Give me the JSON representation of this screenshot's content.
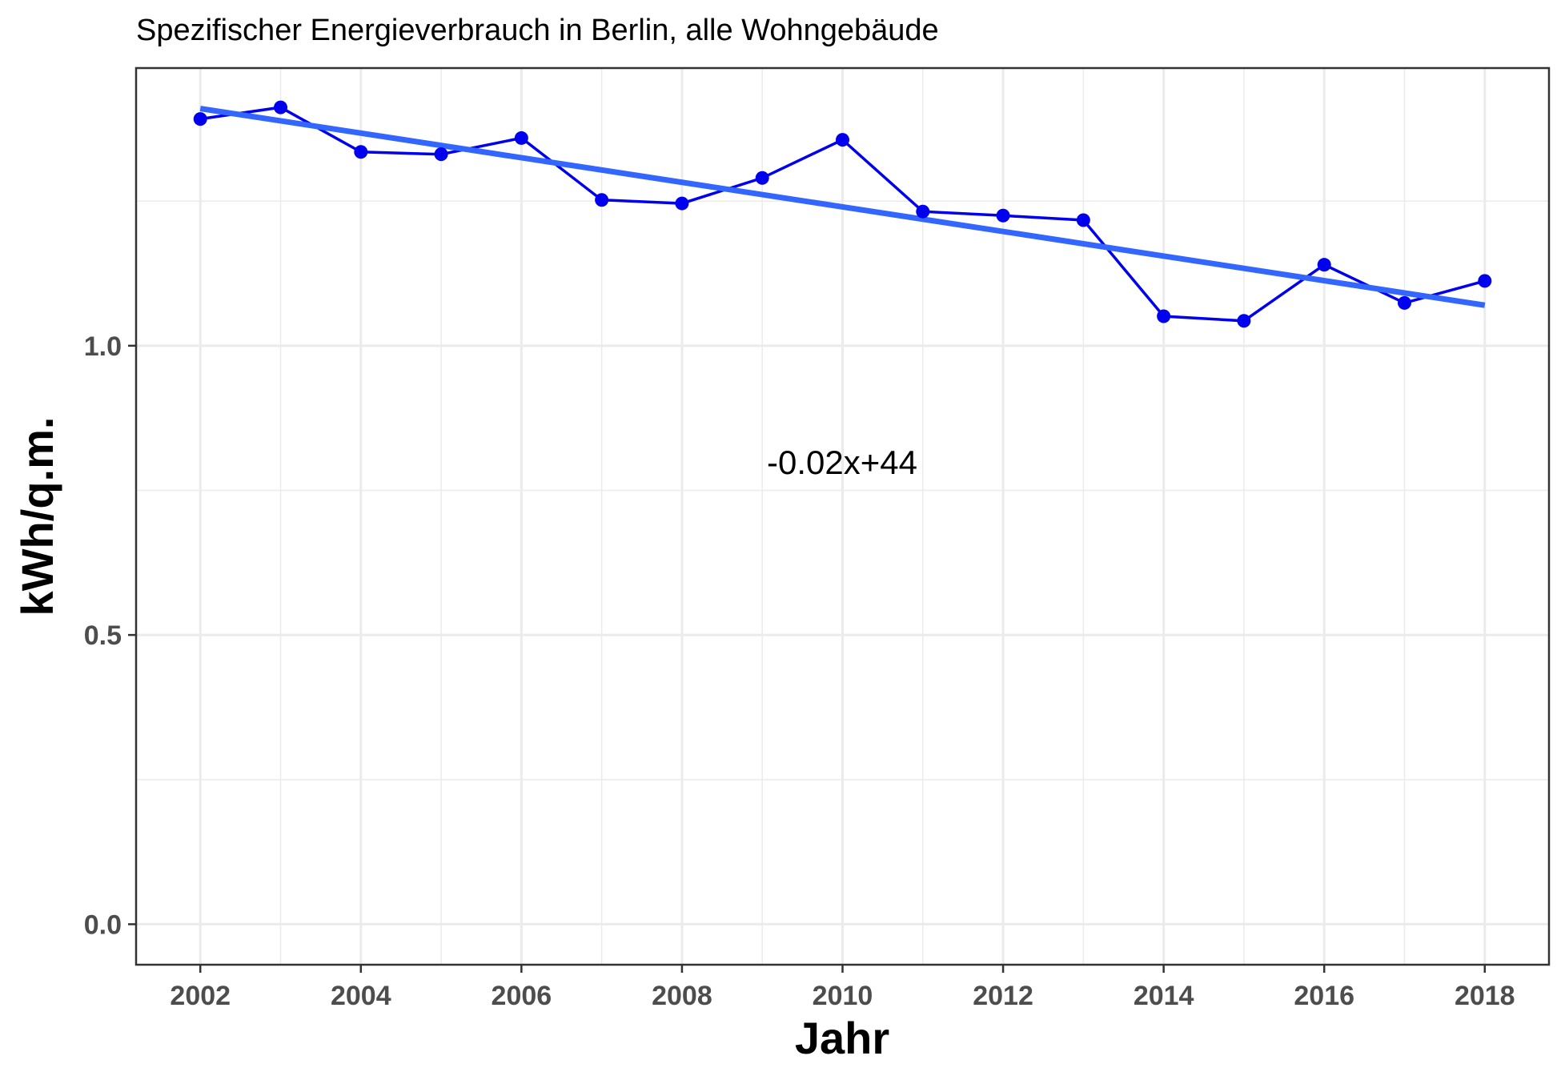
{
  "chart_data": {
    "type": "line",
    "title": "Spezifischer Energieverbrauch in Berlin, alle Wohngebäude",
    "xlabel": "Jahr",
    "ylabel": "kWh/q.m.",
    "xlim": [
      2001.2,
      2018.8
    ],
    "ylim": [
      -0.07,
      1.48
    ],
    "x_ticks": [
      2002,
      2004,
      2006,
      2008,
      2010,
      2012,
      2014,
      2016,
      2018
    ],
    "x_tick_labels": [
      "2002",
      "2004",
      "2006",
      "2008",
      "2010",
      "2012",
      "2014",
      "2016",
      "2018"
    ],
    "y_ticks": [
      0.0,
      0.5,
      1.0
    ],
    "y_tick_labels": [
      "0.0",
      "0.5",
      "1.0"
    ],
    "x_minor_grid": [
      2003,
      2005,
      2007,
      2009,
      2011,
      2013,
      2015,
      2017
    ],
    "y_minor_grid": [
      0.25,
      0.75,
      1.25
    ],
    "grid": true,
    "series": [
      {
        "kind": "line-points",
        "color": "#0000ee",
        "x": [
          2002,
          2003,
          2004,
          2005,
          2006,
          2007,
          2008,
          2009,
          2010,
          2011,
          2012,
          2013,
          2014,
          2015,
          2016,
          2017,
          2018
        ],
        "y": [
          1.392,
          1.412,
          1.335,
          1.331,
          1.359,
          1.252,
          1.246,
          1.29,
          1.356,
          1.232,
          1.225,
          1.217,
          1.051,
          1.043,
          1.14,
          1.074,
          1.112
        ]
      },
      {
        "kind": "trend",
        "color": "#3366ff",
        "x": [
          2002,
          2018
        ],
        "y": [
          1.41,
          1.07
        ]
      }
    ],
    "annotation": {
      "text": "-0.02x+44",
      "x": 2010,
      "y": 0.8
    }
  }
}
